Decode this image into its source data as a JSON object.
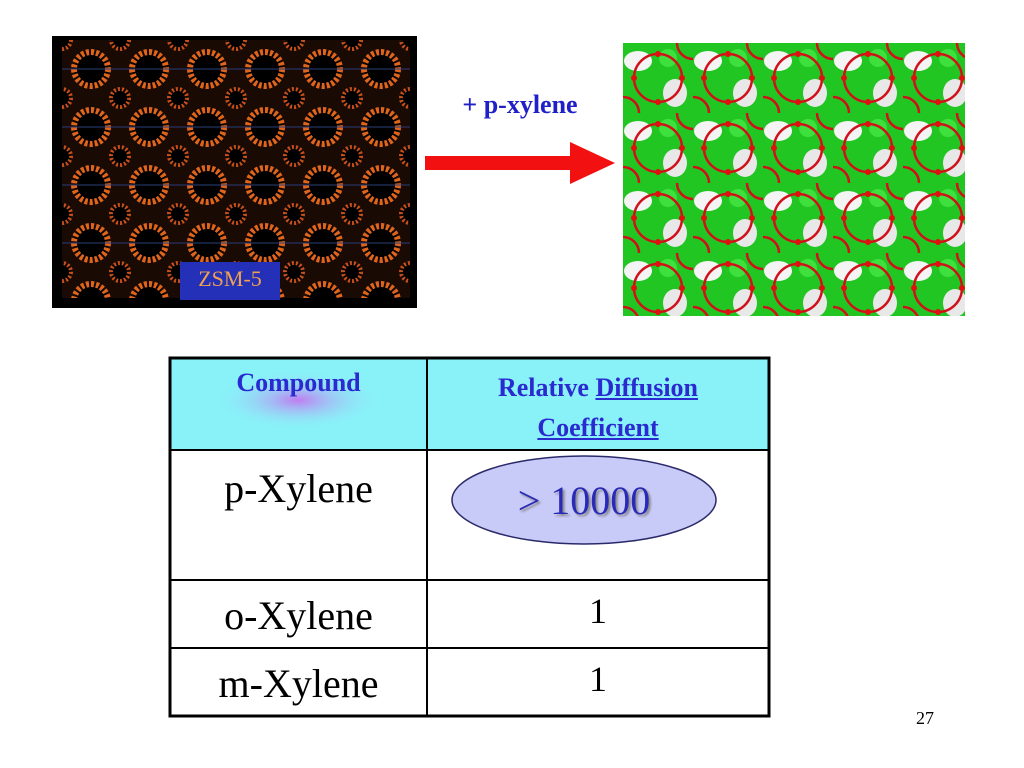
{
  "figure": {
    "left_label": "ZSM-5",
    "arrow_label": "+ p-xylene"
  },
  "table": {
    "header": {
      "compound": "Compound",
      "relative": "Relative",
      "diffusion": "Diffusion",
      "coefficient": "Coefficient"
    },
    "rows": [
      [
        "p-Xylene",
        "> 10000"
      ],
      [
        "o-Xylene",
        "1"
      ],
      [
        "m-Xylene",
        "1"
      ]
    ]
  },
  "page_number": "27"
}
